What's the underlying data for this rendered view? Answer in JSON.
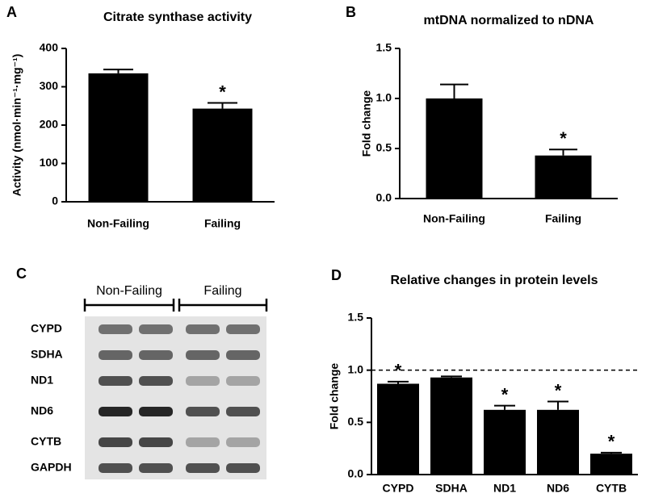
{
  "chart_data": [
    {
      "type": "bar",
      "panel": "A",
      "title": "Citrate synthase activity",
      "ylabel": "Activity (nmol·min⁻¹·mg⁻¹)",
      "categories": [
        "Non-Failing",
        "Failing"
      ],
      "values": [
        335,
        243
      ],
      "errors": [
        10,
        15
      ],
      "markers": [
        null,
        "*"
      ],
      "color": "#000000",
      "ylim": [
        0,
        400
      ],
      "yticks": [
        0,
        100,
        200,
        300,
        400
      ]
    },
    {
      "type": "bar",
      "panel": "B",
      "title": "mtDNA normalized to nDNA",
      "ylabel": "Fold change",
      "categories": [
        "Non-Failing",
        "Failing"
      ],
      "values": [
        1.0,
        0.43
      ],
      "errors": [
        0.14,
        0.06
      ],
      "markers": [
        null,
        "*"
      ],
      "color": "#000000",
      "ylim": [
        0,
        1.5
      ],
      "yticks": [
        {
          "value": 0,
          "label": "0.0"
        },
        0.5,
        {
          "value": 1,
          "label": "1.0"
        },
        1.5
      ]
    },
    {
      "type": "blot",
      "panel": "C",
      "groups": [
        "Non-Failing",
        "Failing"
      ],
      "rows": [
        "CYPD",
        "SDHA",
        "ND1",
        "ND6",
        "CYTB",
        "GAPDH"
      ]
    },
    {
      "type": "bar",
      "panel": "D",
      "title": "Relative changes in protein levels",
      "ylabel": "Fold change",
      "categories": [
        "CYPD",
        "SDHA",
        "ND1",
        "ND6",
        "CYTB"
      ],
      "values": [
        0.87,
        0.93,
        0.62,
        0.62,
        0.2
      ],
      "errors": [
        0.02,
        0.01,
        0.04,
        0.08,
        0.01
      ],
      "markers": [
        "*",
        null,
        "*",
        "*",
        "*"
      ],
      "reference_line": 1,
      "color": "#000000",
      "ylim": [
        0,
        1.5
      ],
      "yticks": [
        {
          "value": 0,
          "label": "0.0"
        },
        0.5,
        {
          "value": 1,
          "label": "1.0"
        },
        1.5
      ]
    }
  ]
}
